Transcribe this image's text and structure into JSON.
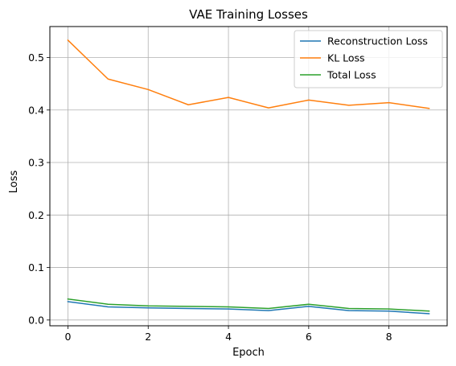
{
  "chart_data": {
    "type": "line",
    "title": "VAE Training Losses",
    "xlabel": "Epoch",
    "ylabel": "Loss",
    "x": [
      0,
      1,
      2,
      3,
      4,
      5,
      6,
      7,
      8,
      9
    ],
    "xlim": [
      -0.45,
      9.45
    ],
    "ylim": [
      -0.011,
      0.559
    ],
    "xticks": [
      0,
      2,
      4,
      6,
      8
    ],
    "yticks": [
      0.0,
      0.1,
      0.2,
      0.3,
      0.4,
      0.5
    ],
    "ytick_labels": [
      "0.0",
      "0.1",
      "0.2",
      "0.3",
      "0.4",
      "0.5"
    ],
    "grid": true,
    "legend_position": "top-right",
    "series": [
      {
        "name": "Reconstruction Loss",
        "color": "#1f77b4",
        "values": [
          0.035,
          0.025,
          0.023,
          0.022,
          0.021,
          0.018,
          0.026,
          0.018,
          0.017,
          0.012
        ]
      },
      {
        "name": "KL Loss",
        "color": "#ff7f0e",
        "values": [
          0.533,
          0.459,
          0.439,
          0.41,
          0.424,
          0.404,
          0.419,
          0.409,
          0.414,
          0.403
        ]
      },
      {
        "name": "Total Loss",
        "color": "#2ca02c",
        "values": [
          0.04,
          0.03,
          0.027,
          0.026,
          0.025,
          0.022,
          0.03,
          0.022,
          0.021,
          0.017
        ]
      }
    ]
  }
}
